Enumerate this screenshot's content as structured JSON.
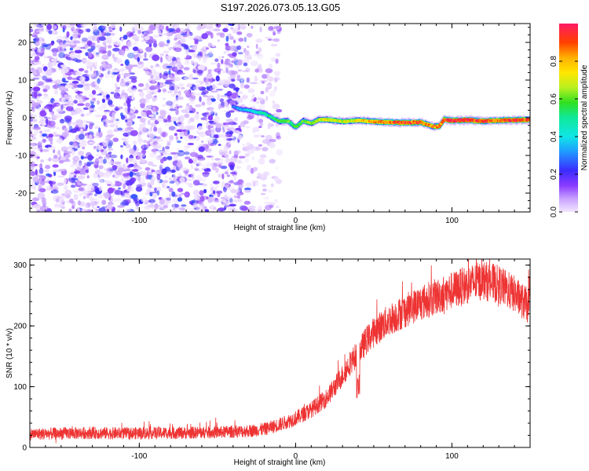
{
  "title": "S197.2026.073.05.13.G05",
  "chart_data": [
    {
      "type": "heatmap",
      "xlabel": "Height of straight line (km)",
      "ylabel": "Frequency (Hz)",
      "xlim": [
        -170,
        150
      ],
      "ylim": [
        -25,
        25
      ],
      "xticks": [
        -100,
        0,
        100
      ],
      "xtick_labels": [
        "-100",
        "0",
        "100"
      ],
      "yticks": [
        -20,
        -10,
        0,
        10,
        20
      ],
      "ytick_labels": [
        "-20",
        "-10",
        "0",
        "10",
        "20"
      ],
      "noise_region_x": [
        -170,
        -20
      ],
      "ridge": {
        "x": [
          -40,
          -35,
          -30,
          -25,
          -20,
          -15,
          -10,
          -5,
          0,
          5,
          10,
          15,
          20,
          30,
          40,
          50,
          60,
          70,
          80,
          88,
          92,
          95,
          100,
          110,
          120,
          130,
          140,
          150
        ],
        "y": [
          3,
          2.2,
          2,
          1.5,
          1.2,
          0,
          -1,
          -0.8,
          -2.5,
          -0.8,
          -1.5,
          -0.5,
          -0.5,
          -1,
          -0.7,
          -1,
          -1.2,
          -1.3,
          -1.2,
          -2.3,
          -2.3,
          -0.5,
          -0.8,
          -0.6,
          -0.9,
          -0.7,
          -0.6,
          -0.5
        ],
        "amp": [
          0.3,
          0.35,
          0.4,
          0.45,
          0.5,
          0.55,
          0.6,
          0.6,
          0.55,
          0.6,
          0.65,
          0.7,
          0.75,
          0.7,
          0.75,
          0.85,
          0.9,
          0.95,
          0.9,
          0.85,
          0.9,
          0.9,
          1.0,
          1.0,
          0.95,
          0.9,
          1.0,
          0.95
        ]
      },
      "colorbar": {
        "label": "Normalized spectral amplitude",
        "range": [
          0,
          1
        ],
        "ticks": [
          0.0,
          0.2,
          0.4,
          0.6,
          0.8
        ],
        "tick_labels": [
          "0.0",
          "0.2",
          "0.4",
          "0.6",
          "0.8"
        ]
      }
    },
    {
      "type": "line",
      "xlabel": "Height of straight line (km)",
      "ylabel": "SNR (10 * v/v)",
      "xlim": [
        -170,
        150
      ],
      "ylim": [
        0,
        310
      ],
      "xticks": [
        -100,
        0,
        100
      ],
      "xtick_labels": [
        "-100",
        "0",
        "100"
      ],
      "yticks": [
        0,
        100,
        200,
        300
      ],
      "ytick_labels": [
        "0",
        "100",
        "200",
        "300"
      ],
      "color": "#ee3333",
      "series": [
        {
          "name": "SNR",
          "x": [
            -170,
            -150,
            -130,
            -110,
            -90,
            -70,
            -50,
            -30,
            -20,
            -10,
            0,
            10,
            20,
            25,
            30,
            35,
            40,
            45,
            50,
            55,
            60,
            70,
            80,
            90,
            100,
            110,
            120,
            130,
            140,
            150
          ],
          "y": [
            22,
            23,
            24,
            23,
            24,
            24,
            25,
            27,
            30,
            38,
            48,
            62,
            82,
            100,
            118,
            140,
            155,
            175,
            190,
            200,
            210,
            225,
            238,
            248,
            258,
            268,
            275,
            268,
            252,
            230
          ]
        }
      ]
    }
  ]
}
